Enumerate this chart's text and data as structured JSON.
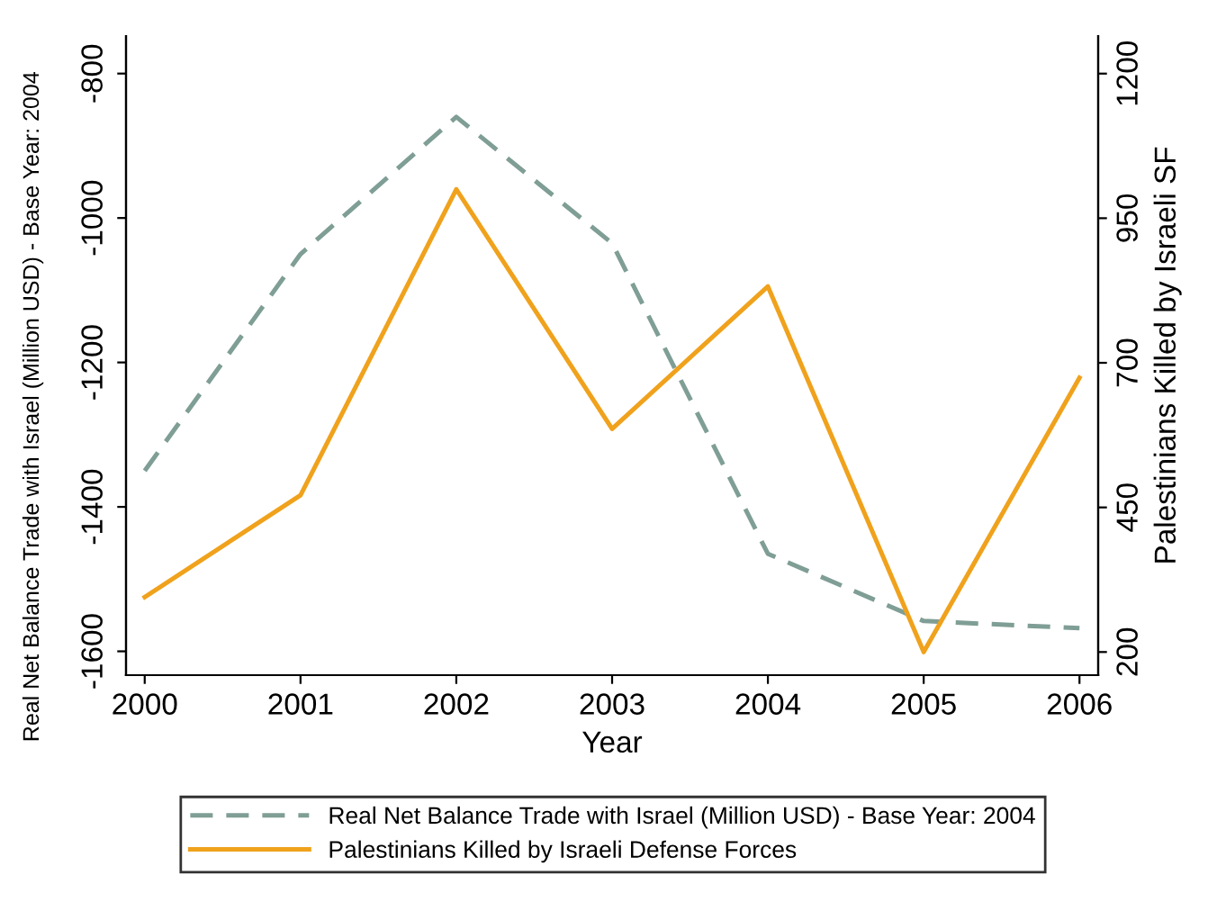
{
  "chart_data": {
    "type": "line",
    "xlabel": "Year",
    "ylabel": "Real Net Balance Trade with Israel (Million USD) - Base Year: 2004",
    "y2label": "Palestinians Killed by Israeli SF",
    "x": [
      2000,
      2001,
      2002,
      2003,
      2004,
      2005,
      2006
    ],
    "xlim": [
      1999.88,
      2006.12
    ],
    "xticks": [
      2000,
      2001,
      2002,
      2003,
      2004,
      2005,
      2006
    ],
    "ylim": [
      -1633,
      -748
    ],
    "yticks": [
      -1600,
      -1400,
      -1200,
      -1000,
      -800
    ],
    "y2lim": [
      160,
      1265
    ],
    "y2ticks": [
      200,
      450,
      700,
      950,
      1200
    ],
    "grid": false,
    "legend": "bottom",
    "marker": "none",
    "series": [
      {
        "name": "Real Net Balance Trade with Israel (Million USD) - Base Year: 2004",
        "color": "#7f9e95",
        "line_style": "dashed",
        "values": [
          -1350,
          -1050,
          -860,
          -1035,
          -1465,
          -1558,
          -1568
        ]
      },
      {
        "name": "Palestinians Killed by Israeli Defense Forces",
        "color": "#f0a21c",
        "line_style": "solid",
        "axis": "y2",
        "values": [
          295,
          471,
          1000,
          586,
          832,
          200,
          674
        ]
      }
    ]
  }
}
